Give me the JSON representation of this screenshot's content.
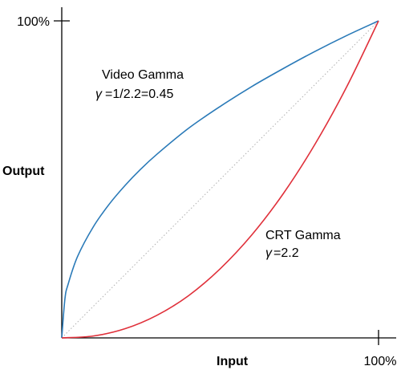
{
  "chart_data": {
    "type": "line",
    "xlabel": "Input",
    "ylabel": "Output",
    "xlim": [
      0,
      100
    ],
    "ylim": [
      0,
      100
    ],
    "x_ticks": [
      {
        "value": 100,
        "label": "100%"
      }
    ],
    "y_ticks": [
      {
        "value": 100,
        "label": "100%"
      }
    ],
    "grid": false,
    "reference_line": {
      "style": "dotted",
      "color": "#b0b0b0",
      "from": [
        0,
        0
      ],
      "to": [
        100,
        100
      ]
    },
    "series": [
      {
        "color": "#2a7ab8",
        "x": [
          0,
          1,
          2,
          5,
          10,
          15,
          20,
          25,
          30,
          40,
          50,
          60,
          70,
          80,
          90,
          100
        ],
        "y": [
          0,
          12.3,
          16.9,
          25.7,
          35.1,
          42.2,
          48.1,
          53.3,
          57.9,
          66.1,
          73.0,
          79.3,
          85.0,
          90.4,
          95.4,
          100
        ]
      },
      {
        "color": "#e0303a",
        "x": [
          0,
          10,
          20,
          30,
          40,
          50,
          60,
          70,
          80,
          90,
          100
        ],
        "y": [
          0,
          0.6,
          2.9,
          7.1,
          13.3,
          21.8,
          32.5,
          45.6,
          61.2,
          79.3,
          100
        ]
      }
    ],
    "annotations": [
      {
        "id": "video_title",
        "text": "Video Gamma"
      },
      {
        "id": "video_symbol",
        "text": "γ"
      },
      {
        "id": "video_formula",
        "text": "=1/2.2=0.45"
      },
      {
        "id": "crt_title",
        "text": "CRT Gamma"
      },
      {
        "id": "crt_symbol",
        "text": "γ"
      },
      {
        "id": "crt_formula",
        "text": "=2.2"
      }
    ]
  }
}
